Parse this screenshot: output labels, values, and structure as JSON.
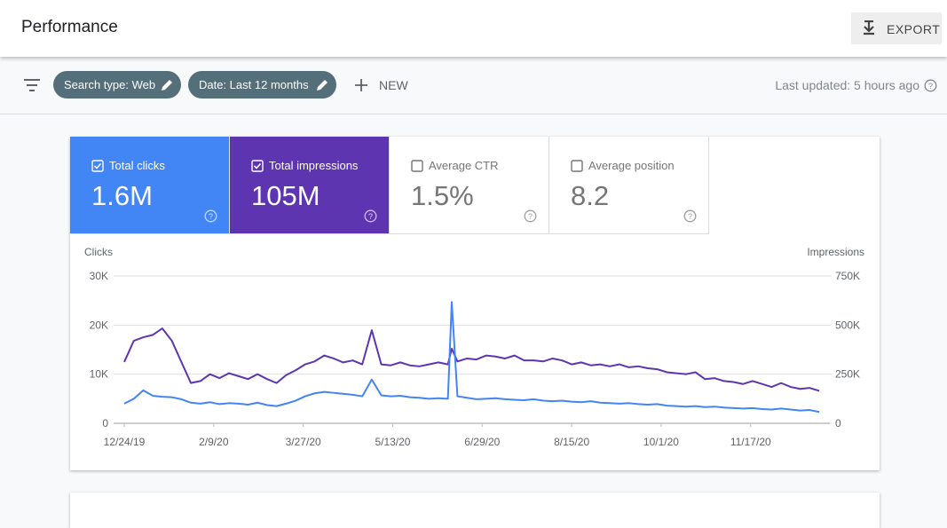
{
  "header": {
    "title": "Performance",
    "export": "EXPORT"
  },
  "toolbar": {
    "filters": [
      "Search type: Web",
      "Date: Last 12 months"
    ],
    "new": "NEW",
    "last_updated": "Last updated: 5 hours ago"
  },
  "metrics": [
    {
      "label": "Total clicks",
      "value": "1.6M",
      "checked": true,
      "color": "#4285f4"
    },
    {
      "label": "Total impressions",
      "value": "105M",
      "checked": true,
      "color": "#5e35b1"
    },
    {
      "label": "Average CTR",
      "value": "1.5%",
      "checked": false
    },
    {
      "label": "Average position",
      "value": "8.2",
      "checked": false
    }
  ],
  "chart_data": {
    "type": "line",
    "x": [
      "12/24/19",
      "12/29/19",
      "1/3/20",
      "1/8/20",
      "1/13/20",
      "1/18/20",
      "1/23/20",
      "1/28/20",
      "2/2/20",
      "2/7/20",
      "2/12/20",
      "2/17/20",
      "2/22/20",
      "2/27/20",
      "3/3/20",
      "3/8/20",
      "3/13/20",
      "3/18/20",
      "3/23/20",
      "3/28/20",
      "4/2/20",
      "4/7/20",
      "4/12/20",
      "4/17/20",
      "4/22/20",
      "4/27/20",
      "5/2/20",
      "5/7/20",
      "5/12/20",
      "5/17/20",
      "5/22/20",
      "5/27/20",
      "6/1/20",
      "6/6/20",
      "6/11/20",
      "6/13/20",
      "6/16/20",
      "6/21/20",
      "6/26/20",
      "7/1/20",
      "7/6/20",
      "7/11/20",
      "7/16/20",
      "7/21/20",
      "7/26/20",
      "7/31/20",
      "8/5/20",
      "8/10/20",
      "8/15/20",
      "8/20/20",
      "8/25/20",
      "8/30/20",
      "9/4/20",
      "9/9/20",
      "9/14/20",
      "9/19/20",
      "9/24/20",
      "9/29/20",
      "10/4/20",
      "10/9/20",
      "10/14/20",
      "10/19/20",
      "10/24/20",
      "10/29/20",
      "11/3/20",
      "11/8/20",
      "11/13/20",
      "11/18/20",
      "11/23/20",
      "11/28/20",
      "12/3/20",
      "12/8/20",
      "12/13/20",
      "12/18/20",
      "12/23/20"
    ],
    "xlim": [
      "12/24/19",
      "12/23/20"
    ],
    "xticks": [
      "12/24/19",
      "2/9/20",
      "3/27/20",
      "5/13/20",
      "6/29/20",
      "8/15/20",
      "10/1/20",
      "11/17/20"
    ],
    "series": [
      {
        "name": "Clicks",
        "color": "#4285f4",
        "axis": "y",
        "values": [
          4000,
          5000,
          6700,
          5600,
          5400,
          5300,
          4900,
          4200,
          4000,
          4300,
          3900,
          4100,
          4000,
          3800,
          4200,
          3700,
          3500,
          4000,
          4600,
          5500,
          6100,
          6400,
          6200,
          6000,
          5800,
          5500,
          8900,
          5700,
          5500,
          5600,
          5300,
          5200,
          5000,
          5100,
          5000,
          24700,
          5500,
          5200,
          4900,
          5000,
          5100,
          4900,
          4800,
          4700,
          4900,
          4600,
          4500,
          4600,
          4400,
          4300,
          4500,
          4200,
          4100,
          4000,
          4100,
          3900,
          3800,
          3900,
          3600,
          3500,
          3400,
          3500,
          3300,
          3400,
          3200,
          3100,
          3000,
          3100,
          2900,
          2800,
          3000,
          2800,
          2600,
          2700,
          2300
        ]
      },
      {
        "name": "Impressions",
        "color": "#5e35b1",
        "axis": "y2",
        "values": [
          312000,
          420000,
          438000,
          450000,
          483000,
          420000,
          312000,
          205000,
          215000,
          250000,
          230000,
          255000,
          240000,
          225000,
          250000,
          225000,
          205000,
          245000,
          270000,
          300000,
          315000,
          345000,
          330000,
          310000,
          320000,
          300000,
          474000,
          300000,
          295000,
          310000,
          295000,
          290000,
          300000,
          310000,
          300000,
          380000,
          315000,
          330000,
          325000,
          345000,
          340000,
          330000,
          345000,
          320000,
          320000,
          315000,
          330000,
          320000,
          300000,
          310000,
          295000,
          300000,
          290000,
          300000,
          285000,
          290000,
          280000,
          275000,
          260000,
          255000,
          250000,
          260000,
          225000,
          230000,
          215000,
          210000,
          200000,
          215000,
          200000,
          185000,
          205000,
          185000,
          175000,
          180000,
          165000
        ]
      }
    ],
    "ylim": [
      0,
      30000
    ],
    "yticks": [
      0,
      {
        "value": 10000,
        "label": "10K"
      },
      {
        "value": 20000,
        "label": "20K"
      },
      {
        "value": 30000,
        "label": "30K"
      }
    ],
    "y2lim": [
      0,
      750000
    ],
    "y2ticks": [
      0,
      {
        "value": 250000,
        "label": "250K"
      },
      {
        "value": 500000,
        "label": "500K"
      },
      {
        "value": 750000,
        "label": "750K"
      }
    ],
    "grid": true
  }
}
